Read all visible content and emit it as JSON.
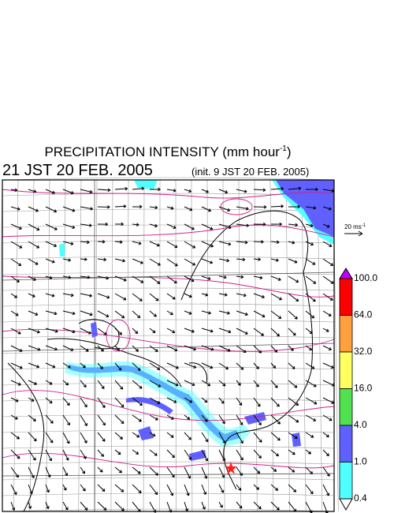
{
  "header": {
    "title_main": "PRECIPITATION INTENSITY (mm hour",
    "title_sup": "-1",
    "title_end": ")",
    "valid_time": "21 JST 20 FEB. 2005",
    "init_time": "(init. 9 JST 20 FEB. 2005)"
  },
  "wind_scale": {
    "label": "20 ms",
    "sup": "-1"
  },
  "colorbar": {
    "levels": [
      "100.0",
      "64.0",
      "32.0",
      "16.0",
      "4.0",
      "1.0",
      "0.4"
    ],
    "colors": [
      "#ff0000",
      "#ffa040",
      "#ffff60",
      "#50e050",
      "#6060ff",
      "#50ffff"
    ],
    "over_color": "#c000ff",
    "under_color": "#ffffff"
  }
}
